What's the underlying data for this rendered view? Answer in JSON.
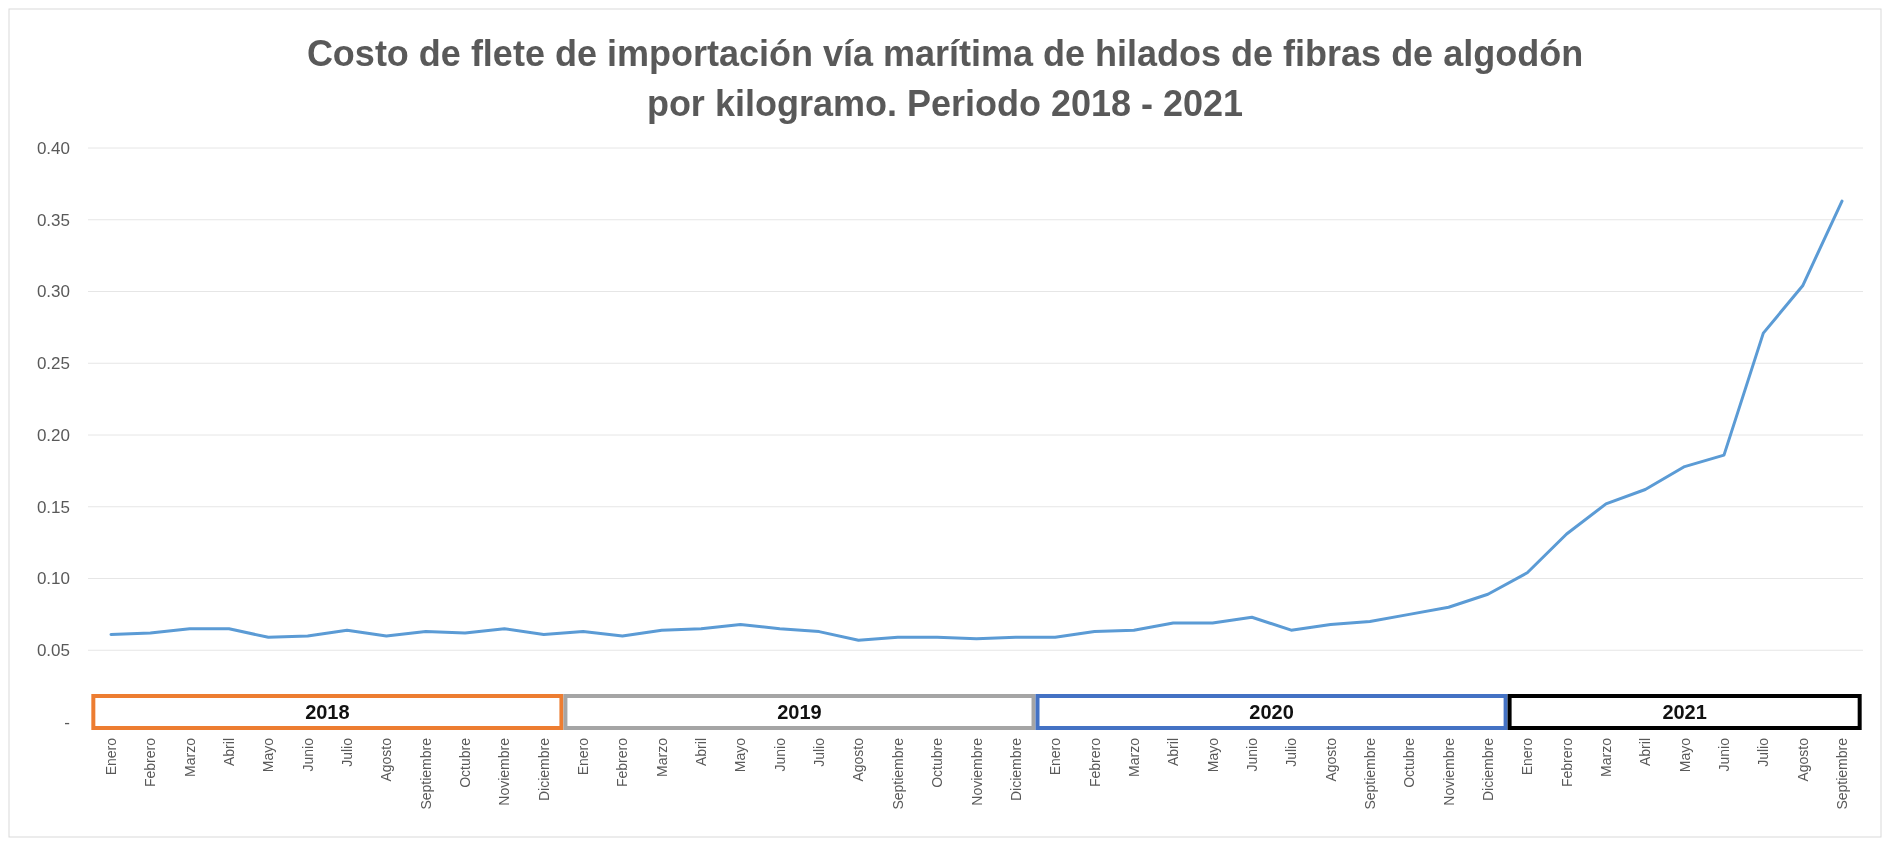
{
  "chart_data": {
    "type": "line",
    "title": "Costo de flete de importación vía marítima de hilados de fibras de algodón por kilogramo. Periodo 2018 - 2021",
    "categories": [
      "Enero",
      "Febrero",
      "Marzo",
      "Abril",
      "Mayo",
      "Junio",
      "Julio",
      "Agosto",
      "Septiembre",
      "Octubre",
      "Noviembre",
      "Diciembre",
      "Enero",
      "Febrero",
      "Marzo",
      "Abril",
      "Mayo",
      "Junio",
      "Julio",
      "Agosto",
      "Septiembre",
      "Octubre",
      "Noviembre",
      "Diciembre",
      "Enero",
      "Febrero",
      "Marzo",
      "Abril",
      "Mayo",
      "Junio",
      "Julio",
      "Agosto",
      "Septiembre",
      "Octubre",
      "Noviembre",
      "Diciembre",
      "Enero",
      "Febrero",
      "Marzo",
      "Abril",
      "Mayo",
      "Junio",
      "Julio",
      "Agosto",
      "Septiembre"
    ],
    "series": [
      {
        "color": "#5b9bd5",
        "values": [
          0.061,
          0.062,
          0.065,
          0.065,
          0.059,
          0.06,
          0.064,
          0.06,
          0.063,
          0.062,
          0.065,
          0.061,
          0.063,
          0.06,
          0.064,
          0.065,
          0.068,
          0.065,
          0.063,
          0.057,
          0.059,
          0.059,
          0.058,
          0.059,
          0.059,
          0.063,
          0.064,
          0.069,
          0.069,
          0.073,
          0.064,
          0.068,
          0.07,
          0.075,
          0.08,
          0.089,
          0.104,
          0.131,
          0.152,
          0.162,
          0.178,
          0.186,
          0.271,
          0.304,
          0.363
        ]
      }
    ],
    "ylim": [
      0,
      0.4
    ],
    "yticks": [
      {
        "value": 0,
        "label": "-"
      },
      {
        "value": 0.05,
        "label": "0.05"
      },
      {
        "value": 0.1,
        "label": "0.10"
      },
      {
        "value": 0.15,
        "label": "0.15"
      },
      {
        "value": 0.2,
        "label": "0.20"
      },
      {
        "value": 0.25,
        "label": "0.25"
      },
      {
        "value": 0.3,
        "label": "0.30"
      },
      {
        "value": 0.35,
        "label": "0.35"
      },
      {
        "value": 0.4,
        "label": "0.40"
      }
    ],
    "grid": "y",
    "marker": "none",
    "line_style": "solid",
    "annotations": [
      "2018",
      "2019",
      "2020",
      "2021"
    ]
  }
}
